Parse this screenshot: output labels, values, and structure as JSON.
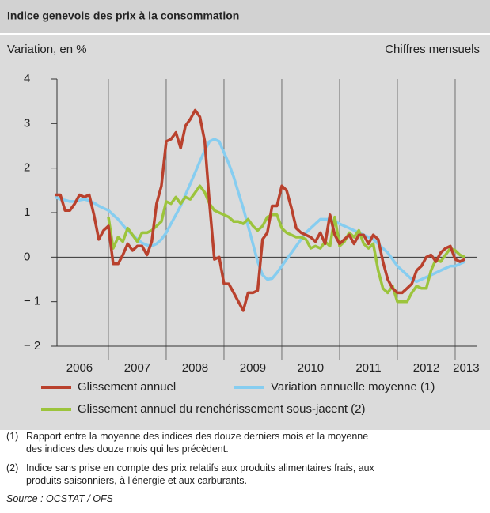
{
  "chart_data": {
    "type": "line",
    "title": "Indice genevois des prix à la consommation",
    "subtitle": "Variation, en %",
    "subtitle_right": "Chiffres mensuels",
    "x": [
      2006.083,
      2006.167,
      2006.25,
      2006.333,
      2006.417,
      2006.5,
      2006.583,
      2006.667,
      2006.75,
      2006.833,
      2006.917,
      2007,
      2007.083,
      2007.167,
      2007.25,
      2007.333,
      2007.417,
      2007.5,
      2007.583,
      2007.667,
      2007.75,
      2007.833,
      2007.917,
      2008,
      2008.083,
      2008.167,
      2008.25,
      2008.333,
      2008.417,
      2008.5,
      2008.583,
      2008.667,
      2008.75,
      2008.833,
      2008.917,
      2009,
      2009.083,
      2009.167,
      2009.25,
      2009.333,
      2009.417,
      2009.5,
      2009.583,
      2009.667,
      2009.75,
      2009.833,
      2009.917,
      2010,
      2010.083,
      2010.167,
      2010.25,
      2010.333,
      2010.417,
      2010.5,
      2010.583,
      2010.667,
      2010.75,
      2010.833,
      2010.917,
      2011,
      2011.083,
      2011.167,
      2011.25,
      2011.333,
      2011.417,
      2011.5,
      2011.583,
      2011.667,
      2011.75,
      2011.833,
      2011.917,
      2012,
      2012.083,
      2012.167,
      2012.25,
      2012.333,
      2012.417,
      2012.5,
      2012.583,
      2012.667,
      2012.75,
      2012.833,
      2012.917,
      2013,
      2013.083,
      2013.167
    ],
    "series": [
      {
        "name": "Glissement annuel",
        "color": "#b9412d",
        "values": [
          1.4,
          1.4,
          1.05,
          1.05,
          1.2,
          1.4,
          1.35,
          1.4,
          0.95,
          0.4,
          0.6,
          0.7,
          -0.15,
          -0.15,
          0.05,
          0.3,
          0.15,
          0.25,
          0.25,
          0.05,
          0.35,
          1.2,
          1.6,
          2.6,
          2.65,
          2.8,
          2.45,
          2.95,
          3.1,
          3.3,
          3.15,
          2.6,
          1.2,
          -0.05,
          0,
          -0.6,
          -0.6,
          -0.8,
          -1,
          -1.2,
          -0.8,
          -0.8,
          -0.75,
          0.4,
          0.55,
          1.15,
          1.15,
          1.6,
          1.5,
          1.1,
          0.65,
          0.55,
          0.5,
          0.45,
          0.35,
          0.55,
          0.3,
          0.95,
          0.5,
          0.3,
          0.4,
          0.5,
          0.3,
          0.5,
          0.5,
          0.3,
          0.5,
          0.4,
          -0.1,
          -0.5,
          -0.7,
          -0.8,
          -0.8,
          -0.7,
          -0.6,
          -0.3,
          -0.2,
          0,
          0.05,
          -0.1,
          0.1,
          0.2,
          0.25,
          -0.05,
          -0.1,
          -0.05
        ]
      },
      {
        "name": "Variation annuelle moyenne (1)",
        "color": "#86cdf0",
        "values": [
          1.35,
          1.3,
          1.28,
          1.25,
          1.25,
          1.28,
          1.3,
          1.27,
          1.22,
          1.15,
          1.1,
          1.05,
          0.95,
          0.85,
          0.72,
          0.6,
          0.5,
          0.4,
          0.32,
          0.27,
          0.25,
          0.3,
          0.4,
          0.55,
          0.75,
          0.95,
          1.15,
          1.4,
          1.65,
          1.9,
          2.15,
          2.4,
          2.6,
          2.65,
          2.6,
          2.35,
          2.1,
          1.8,
          1.45,
          1.1,
          0.7,
          0.3,
          -0.1,
          -0.4,
          -0.5,
          -0.48,
          -0.35,
          -0.2,
          -0.05,
          0.1,
          0.25,
          0.4,
          0.55,
          0.65,
          0.75,
          0.85,
          0.85,
          0.85,
          0.8,
          0.75,
          0.7,
          0.65,
          0.6,
          0.55,
          0.5,
          0.45,
          0.4,
          0.3,
          0.2,
          0.1,
          -0.05,
          -0.2,
          -0.3,
          -0.4,
          -0.5,
          -0.55,
          -0.5,
          -0.45,
          -0.4,
          -0.35,
          -0.3,
          -0.25,
          -0.2,
          -0.2,
          -0.15,
          -0.1
        ]
      },
      {
        "name": "Glissement annuel du renchérissement sous-jacent (2)",
        "color": "#9cc43c",
        "values": [
          null,
          null,
          null,
          null,
          null,
          null,
          null,
          null,
          null,
          null,
          null,
          0.9,
          0.2,
          0.45,
          0.35,
          0.65,
          0.5,
          0.35,
          0.55,
          0.55,
          0.6,
          0.7,
          0.8,
          1.25,
          1.2,
          1.35,
          1.2,
          1.35,
          1.3,
          1.45,
          1.6,
          1.45,
          1.2,
          1.05,
          1,
          0.95,
          0.9,
          0.8,
          0.8,
          0.75,
          0.85,
          0.7,
          0.6,
          0.7,
          0.9,
          0.95,
          0.95,
          0.65,
          0.55,
          0.5,
          0.45,
          0.45,
          0.4,
          0.2,
          0.25,
          0.2,
          0.35,
          0.25,
          0.9,
          0.25,
          0.35,
          0.55,
          0.45,
          0.6,
          0.3,
          0.2,
          0.3,
          -0.3,
          -0.7,
          -0.8,
          -0.65,
          -1,
          -1,
          -1,
          -0.8,
          -0.65,
          -0.7,
          -0.7,
          -0.3,
          -0.05,
          -0.1,
          0.05,
          0.2,
          0.15,
          0.05,
          0
        ]
      }
    ],
    "xlim": [
      2006.11,
      2013.37
    ],
    "xticks": [
      {
        "value": 2006.5,
        "label": "2006"
      },
      {
        "value": 2007.5,
        "label": "2007"
      },
      {
        "value": 2008.5,
        "label": "2008"
      },
      {
        "value": 2009.5,
        "label": "2009"
      },
      {
        "value": 2010.5,
        "label": "2010"
      },
      {
        "value": 2011.5,
        "label": "2011"
      },
      {
        "value": 2012.5,
        "label": "2012"
      },
      {
        "value": 2013.19,
        "label": "2013"
      }
    ],
    "year_boundaries": [
      2007,
      2008,
      2009,
      2010,
      2011,
      2012,
      2013
    ],
    "ylim": [
      -2,
      4
    ],
    "yticks": [
      4,
      3,
      2,
      1,
      0,
      {
        "value": -1,
        "label": "− 1"
      },
      {
        "value": -2,
        "label": "− 2"
      }
    ],
    "notes": [
      {
        "marker": "(1)",
        "lines": [
          "Rapport entre la moyenne des indices des douze derniers mois et la moyenne",
          "des indices des douze mois qui les précèdent."
        ]
      },
      {
        "marker": "(2)",
        "lines": [
          "Indice sans prise en compte des prix relatifs aux produits alimentaires frais, aux",
          "produits saisonniers, à l'énergie et aux carburants."
        ]
      }
    ],
    "source": "Source : OCSTAT / OFS"
  }
}
